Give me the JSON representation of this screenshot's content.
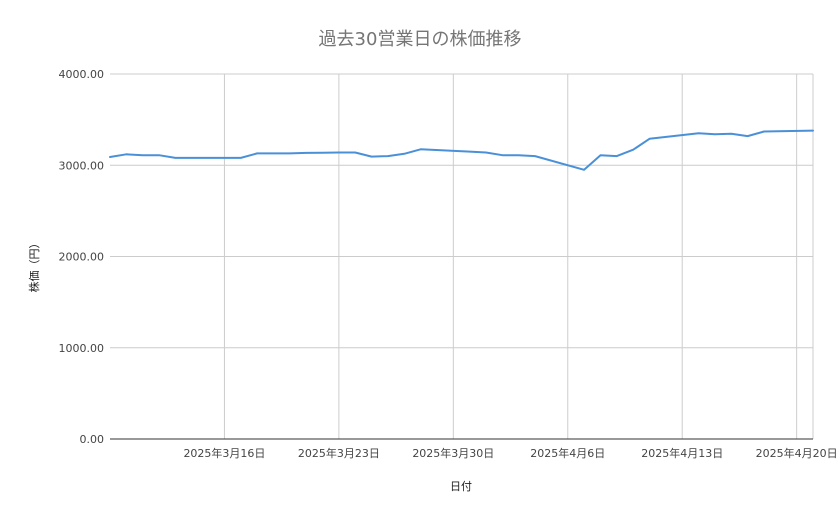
{
  "chart_data": {
    "type": "line",
    "title": "過去30営業日の株価推移",
    "xlabel": "日付",
    "ylabel": "株価（円）",
    "ylim": [
      0,
      4000
    ],
    "y_ticks": [
      {
        "value": 0,
        "label": "0.00"
      },
      {
        "value": 1000,
        "label": "1000.00"
      },
      {
        "value": 2000,
        "label": "2000.00"
      },
      {
        "value": 3000,
        "label": "3000.00"
      },
      {
        "value": 4000,
        "label": "4000.00"
      }
    ],
    "x_range": [
      "2025-03-09",
      "2025-04-21"
    ],
    "x_ticks": [
      {
        "date": "2025-03-16",
        "label": "2025年3月16日"
      },
      {
        "date": "2025-03-23",
        "label": "2025年3月23日"
      },
      {
        "date": "2025-03-30",
        "label": "2025年3月30日"
      },
      {
        "date": "2025-04-06",
        "label": "2025年4月6日"
      },
      {
        "date": "2025-04-13",
        "label": "2025年4月13日"
      },
      {
        "date": "2025-04-20",
        "label": "2025年4月20日"
      }
    ],
    "grid": true,
    "legend": "none",
    "series_color": "#4a90d9",
    "series": [
      {
        "points": [
          {
            "x": "2025-03-09",
            "y": 3090
          },
          {
            "x": "2025-03-10",
            "y": 3120
          },
          {
            "x": "2025-03-11",
            "y": 3110
          },
          {
            "x": "2025-03-12",
            "y": 3110
          },
          {
            "x": "2025-03-13",
            "y": 3080
          },
          {
            "x": "2025-03-14",
            "y": 3080
          },
          {
            "x": "2025-03-15",
            "y": 3080
          },
          {
            "x": "2025-03-16",
            "y": 3080
          },
          {
            "x": "2025-03-17",
            "y": 3080
          },
          {
            "x": "2025-03-18",
            "y": 3130
          },
          {
            "x": "2025-03-19",
            "y": 3130
          },
          {
            "x": "2025-03-20",
            "y": 3130
          },
          {
            "x": "2025-03-21",
            "y": 3135
          },
          {
            "x": "2025-03-22",
            "y": 3138
          },
          {
            "x": "2025-03-23",
            "y": 3140
          },
          {
            "x": "2025-03-24",
            "y": 3140
          },
          {
            "x": "2025-03-25",
            "y": 3095
          },
          {
            "x": "2025-03-26",
            "y": 3100
          },
          {
            "x": "2025-03-27",
            "y": 3125
          },
          {
            "x": "2025-03-28",
            "y": 3175
          },
          {
            "x": "2025-03-31",
            "y": 3150
          },
          {
            "x": "2025-04-01",
            "y": 3140
          },
          {
            "x": "2025-04-02",
            "y": 3110
          },
          {
            "x": "2025-04-03",
            "y": 3110
          },
          {
            "x": "2025-04-04",
            "y": 3100
          },
          {
            "x": "2025-04-07",
            "y": 2950
          },
          {
            "x": "2025-04-08",
            "y": 3110
          },
          {
            "x": "2025-04-09",
            "y": 3100
          },
          {
            "x": "2025-04-10",
            "y": 3170
          },
          {
            "x": "2025-04-11",
            "y": 3290
          },
          {
            "x": "2025-04-14",
            "y": 3350
          },
          {
            "x": "2025-04-15",
            "y": 3340
          },
          {
            "x": "2025-04-16",
            "y": 3345
          },
          {
            "x": "2025-04-17",
            "y": 3320
          },
          {
            "x": "2025-04-18",
            "y": 3370
          },
          {
            "x": "2025-04-21",
            "y": 3380
          }
        ]
      }
    ]
  }
}
